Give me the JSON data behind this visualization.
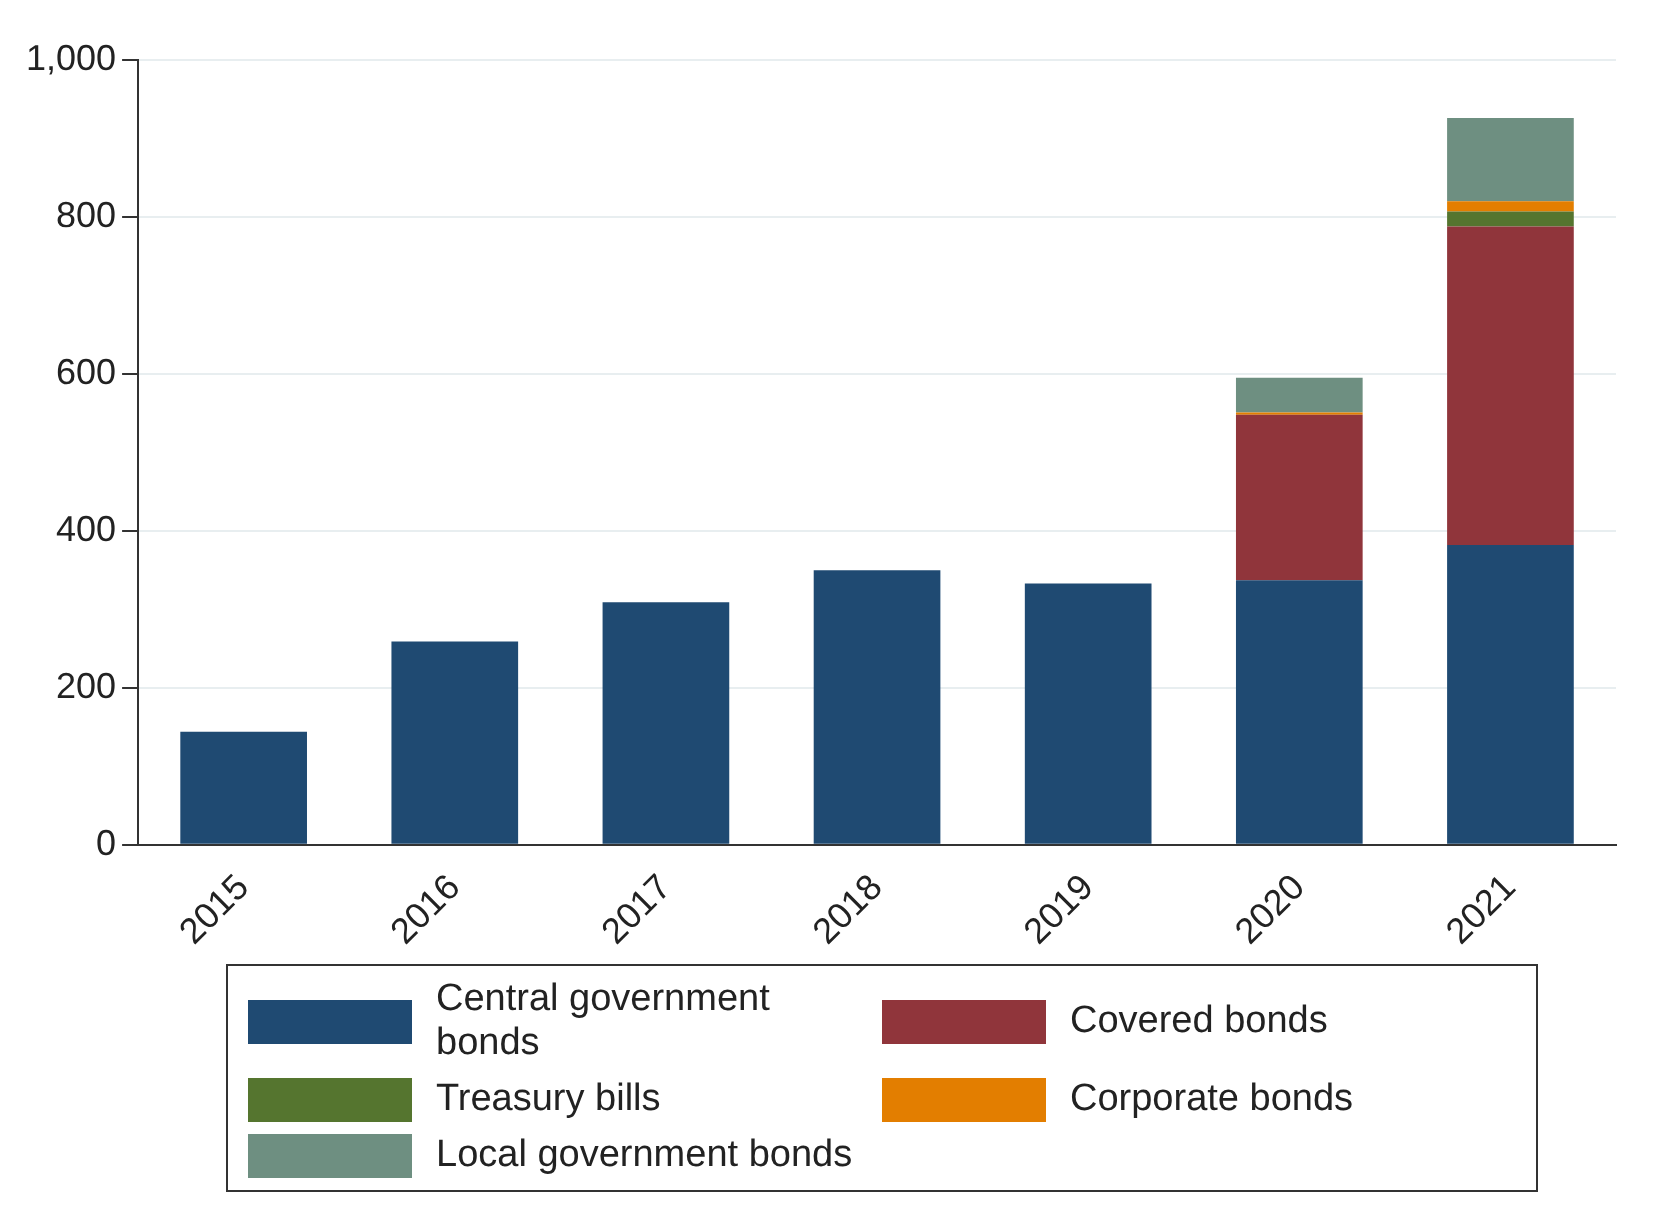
{
  "chart_data": {
    "type": "bar",
    "stacked": true,
    "categories": [
      "2015",
      "2016",
      "2017",
      "2018",
      "2019",
      "2020",
      "2021"
    ],
    "series": [
      {
        "name": "Central government bonds",
        "color": "#1f4a72",
        "values": [
          144,
          259,
          309,
          350,
          333,
          337,
          382
        ]
      },
      {
        "name": "Covered bonds",
        "color": "#90353b",
        "values": [
          0,
          0,
          0,
          0,
          0,
          211,
          406
        ]
      },
      {
        "name": "Treasury bills",
        "color": "#55752f",
        "values": [
          0,
          0,
          0,
          0,
          0,
          0,
          19
        ]
      },
      {
        "name": "Corporate bonds",
        "color": "#e37e00",
        "values": [
          0,
          0,
          0,
          0,
          0,
          3,
          13
        ]
      },
      {
        "name": "Local government bonds",
        "color": "#6e8f81",
        "values": [
          0,
          0,
          0,
          0,
          0,
          44,
          106
        ]
      }
    ],
    "ylim": [
      0,
      1000
    ],
    "yticks": [
      0,
      {
        "value": 200,
        "label": "200"
      },
      400,
      600,
      800,
      {
        "value": 1000,
        "label": "1,000"
      }
    ],
    "grid": "y",
    "legend": "bottom"
  }
}
